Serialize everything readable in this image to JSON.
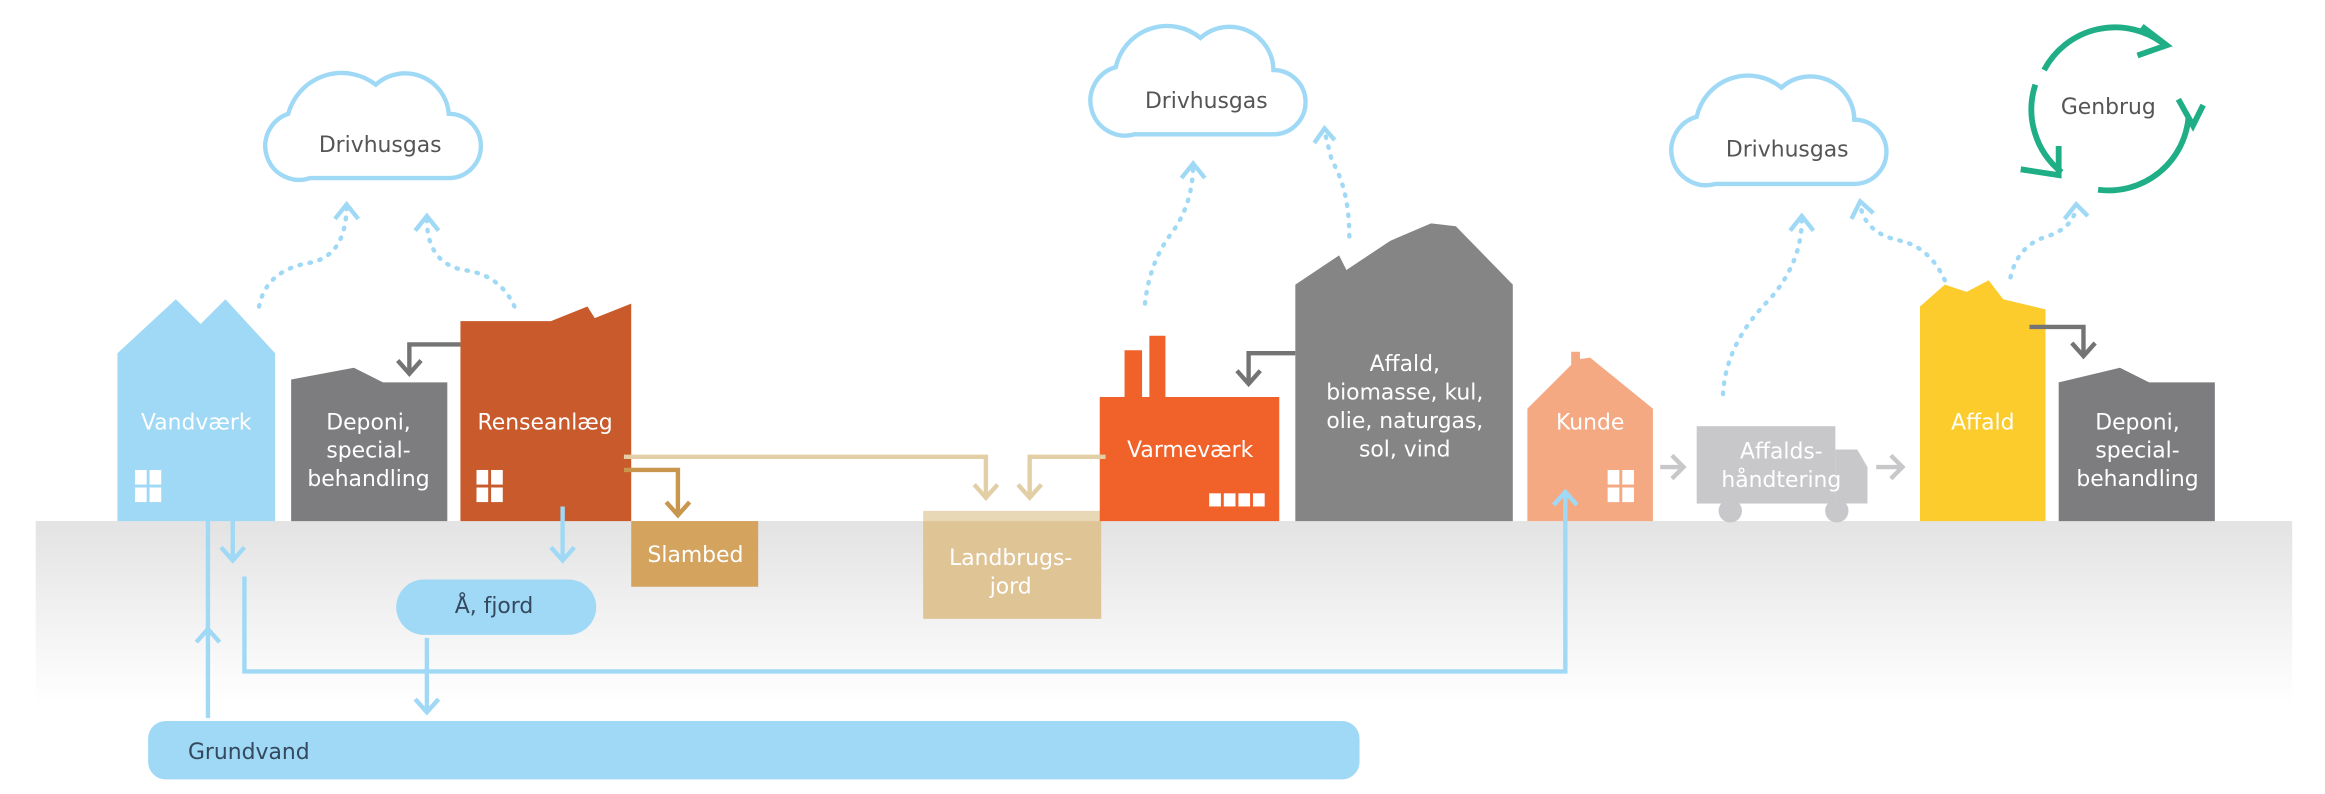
{
  "clouds": [
    "Drivhusgas",
    "Drivhusgas",
    "Drivhusgas"
  ],
  "genbrug": "Genbrug",
  "nodes": [
    {
      "lines": [
        "Vandværk"
      ]
    },
    {
      "lines": [
        "Deponi,",
        "special-",
        "behandling"
      ]
    },
    {
      "lines": [
        "Renseanlæg"
      ]
    },
    {
      "lines": [
        "Slambed"
      ]
    },
    {
      "lines": [
        "Landbrugs-",
        "jord"
      ]
    },
    {
      "lines": [
        "Varmeværk"
      ]
    },
    {
      "lines": [
        "Affald,",
        "biomasse, kul,",
        "olie, naturgas,",
        "sol, vind"
      ]
    },
    {
      "lines": [
        "Kunde"
      ]
    },
    {
      "lines": [
        "Affalds-",
        "håndtering"
      ]
    },
    {
      "lines": [
        "Affald"
      ]
    },
    {
      "lines": [
        "Deponi,",
        "special-",
        "behandling"
      ]
    },
    {
      "lines": [
        "Å, fjord"
      ]
    },
    {
      "lines": [
        "Grundvand"
      ]
    }
  ]
}
